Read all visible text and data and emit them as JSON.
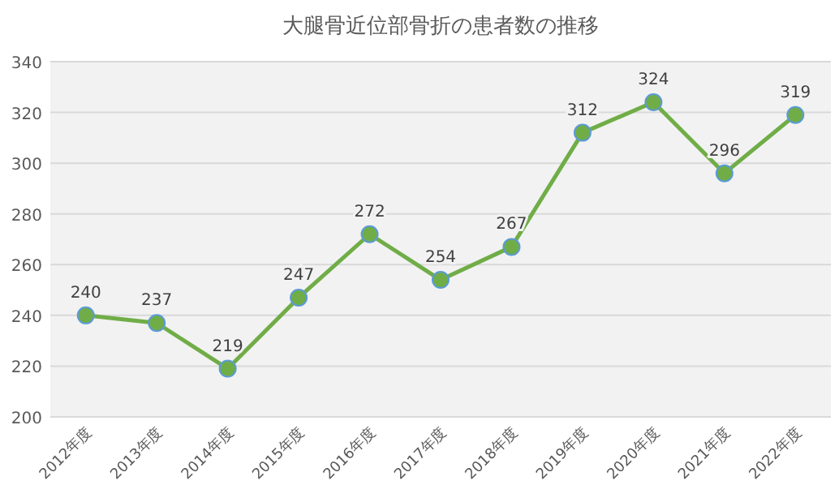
{
  "chart_data": {
    "type": "line",
    "title": "大腿骨近位部骨折の患者数の推移",
    "categories": [
      "2012年度",
      "2013年度",
      "2014年度",
      "2015年度",
      "2016年度",
      "2017年度",
      "2018年度",
      "2019年度",
      "2020年度",
      "2021年度",
      "2022年度"
    ],
    "values": [
      240,
      237,
      219,
      247,
      272,
      254,
      267,
      312,
      324,
      296,
      319
    ],
    "color": "#70ad47",
    "ylim": [
      200,
      340
    ],
    "yticks": [
      200,
      220,
      240,
      260,
      280,
      300,
      320,
      340
    ],
    "grid": "y",
    "marker": "circle",
    "line_style": "solid",
    "data_labels": true
  }
}
